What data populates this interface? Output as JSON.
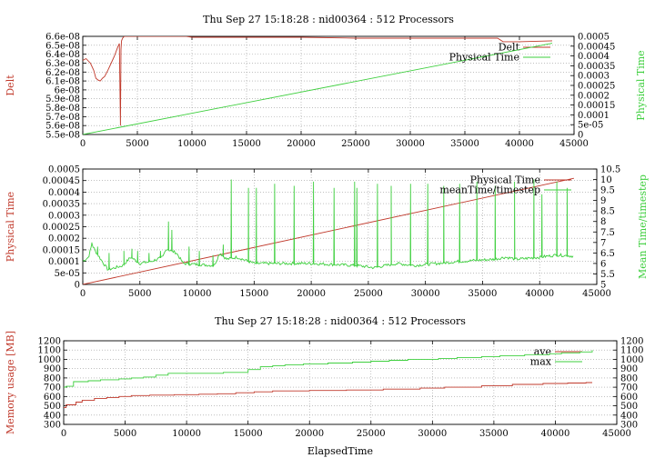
{
  "chart_data": [
    {
      "type": "line",
      "title": "Thu Sep 27 15:18:28 : nid00364 : 512 Processors",
      "xlabel": "",
      "ylabel": "Delt",
      "y2label": "Physical Time",
      "xlim": [
        0,
        45000
      ],
      "ylim": [
        5.5e-08,
        6.6e-08
      ],
      "y2lim": [
        0,
        0.0005
      ],
      "xticks": [
        "0",
        "5000",
        "10000",
        "15000",
        "20000",
        "25000",
        "30000",
        "35000",
        "40000",
        "45000"
      ],
      "yticks": [
        "5.5e-08",
        "5.6e-08",
        "5.7e-08",
        "5.8e-08",
        "5.9e-08",
        "6e-08",
        "6.1e-08",
        "6.2e-08",
        "6.3e-08",
        "6.4e-08",
        "6.5e-08",
        "6.6e-08"
      ],
      "y2ticks": [
        "0",
        "5e-05",
        "0.0001",
        "0.00015",
        "0.0002",
        "0.00025",
        "0.0003",
        "0.00035",
        "0.0004",
        "0.00045",
        "0.0005"
      ],
      "grid": true,
      "legend": "top-right",
      "series": [
        {
          "name": "Delt",
          "axis": "y",
          "color": "#c0392b",
          "x": [
            0,
            300,
            700,
            1000,
            1200,
            1400,
            1600,
            1800,
            2000,
            2300,
            2600,
            2900,
            3200,
            3350,
            3450,
            3500,
            3550,
            3650,
            3800,
            4000,
            5000,
            8000,
            9500,
            10000,
            12000,
            15000,
            20000,
            25000,
            30000,
            35000,
            38000,
            38500,
            40000,
            43000
          ],
          "y": [
            6.33e-08,
            6.35e-08,
            6.3e-08,
            6.22e-08,
            6.13e-08,
            6.11e-08,
            6.1e-08,
            6.13e-08,
            6.15e-08,
            6.22e-08,
            6.3e-08,
            6.38e-08,
            6.48e-08,
            6.52e-08,
            5.6e-08,
            6.45e-08,
            6.55e-08,
            6.58e-08,
            6.6e-08,
            6.6e-08,
            6.6e-08,
            6.6e-08,
            6.6e-08,
            6.59e-08,
            6.59e-08,
            6.59e-08,
            6.59e-08,
            6.58e-08,
            6.58e-08,
            6.58e-08,
            6.58e-08,
            6.54e-08,
            6.54e-08,
            6.55e-08
          ]
        },
        {
          "name": "Physical Time",
          "axis": "y2",
          "color": "#3ecf3e",
          "x": [
            0,
            43000
          ],
          "y": [
            0,
            0.000465
          ]
        }
      ]
    },
    {
      "type": "line",
      "title": "",
      "xlabel": "",
      "ylabel": "Physical Time",
      "y2label": "Mean Time/timestep",
      "xlim": [
        0,
        45000
      ],
      "ylim": [
        0,
        0.0005
      ],
      "y2lim": [
        5,
        10.5
      ],
      "xticks": [
        "0",
        "5000",
        "10000",
        "15000",
        "20000",
        "25000",
        "30000",
        "35000",
        "40000",
        "45000"
      ],
      "yticks": [
        "0",
        "5e-05",
        "0.0001",
        "0.00015",
        "0.0002",
        "0.00025",
        "0.0003",
        "0.00035",
        "0.0004",
        "0.00045",
        "0.0005"
      ],
      "y2ticks": [
        "5",
        "5.5",
        "6",
        "6.5",
        "7",
        "7.5",
        "8",
        "8.5",
        "9",
        "9.5",
        "10",
        "10.5"
      ],
      "grid": true,
      "legend": "top-right",
      "series": [
        {
          "name": "Physical Time",
          "axis": "y",
          "color": "#c0392b",
          "x": [
            0,
            43000
          ],
          "y": [
            0,
            0.00046
          ]
        },
        {
          "name": "meanTime/timestep",
          "axis": "y2",
          "color": "#3ecf3e",
          "baseline": [
            [
              0,
              6.1
            ],
            [
              500,
              6.3
            ],
            [
              800,
              6.9
            ],
            [
              1200,
              6.5
            ],
            [
              1700,
              6.1
            ],
            [
              2200,
              5.7
            ],
            [
              3500,
              5.9
            ],
            [
              4200,
              6.3
            ],
            [
              5000,
              6.0
            ],
            [
              6000,
              6.1
            ],
            [
              7000,
              6.3
            ],
            [
              7300,
              6.7
            ],
            [
              8200,
              6.5
            ],
            [
              8800,
              6.0
            ],
            [
              11500,
              5.9
            ],
            [
              12000,
              6.5
            ],
            [
              12600,
              6.2
            ],
            [
              13500,
              6.3
            ],
            [
              15000,
              6.0
            ],
            [
              20000,
              6.0
            ],
            [
              24000,
              5.9
            ],
            [
              25500,
              5.8
            ],
            [
              27500,
              6.0
            ],
            [
              29000,
              5.9
            ],
            [
              31000,
              6.0
            ],
            [
              33000,
              6.1
            ],
            [
              36000,
              6.2
            ],
            [
              37000,
              6.3
            ],
            [
              38000,
              6.2
            ],
            [
              40000,
              6.3
            ],
            [
              41500,
              6.4
            ],
            [
              43000,
              6.35
            ]
          ],
          "spikes": [
            [
              800,
              7.0
            ],
            [
              1300,
              6.8
            ],
            [
              2300,
              6.5
            ],
            [
              3600,
              6.6
            ],
            [
              4300,
              6.7
            ],
            [
              4800,
              6.6
            ],
            [
              5800,
              6.5
            ],
            [
              6800,
              6.6
            ],
            [
              7500,
              8.0
            ],
            [
              7800,
              7.6
            ],
            [
              9300,
              6.8
            ],
            [
              10200,
              6.6
            ],
            [
              11400,
              6.4
            ],
            [
              12300,
              6.9
            ],
            [
              13000,
              10.0
            ],
            [
              14500,
              9.6
            ],
            [
              15200,
              9.6
            ],
            [
              16800,
              9.8
            ],
            [
              18500,
              9.7
            ],
            [
              20200,
              9.9
            ],
            [
              22000,
              9.6
            ],
            [
              23800,
              9.9
            ],
            [
              24000,
              9.6
            ],
            [
              25800,
              9.8
            ],
            [
              27000,
              9.7
            ],
            [
              28700,
              9.8
            ],
            [
              30200,
              9.8
            ],
            [
              31600,
              9.7
            ],
            [
              33000,
              9.8
            ],
            [
              34500,
              9.9
            ],
            [
              36100,
              9.7
            ],
            [
              37800,
              9.9
            ],
            [
              39500,
              10.0
            ],
            [
              40200,
              9.3
            ],
            [
              41500,
              9.9
            ],
            [
              42400,
              9.6
            ]
          ]
        }
      ]
    },
    {
      "type": "line",
      "title": "Thu Sep 27 15:18:28 : nid00364 : 512 Processors",
      "xlabel": "ElapsedTime",
      "ylabel": "Memory usage [MB]",
      "y2label": "",
      "xlim": [
        0,
        45000
      ],
      "ylim": [
        300,
        1200
      ],
      "y2lim": [
        300,
        1200
      ],
      "xticks": [
        "0",
        "5000",
        "10000",
        "15000",
        "20000",
        "25000",
        "30000",
        "35000",
        "40000",
        "45000"
      ],
      "yticks": [
        "300",
        "400",
        "500",
        "600",
        "700",
        "800",
        "900",
        "1000",
        "1100",
        "1200"
      ],
      "y2ticks": [
        "300",
        "400",
        "500",
        "600",
        "700",
        "800",
        "900",
        "1000",
        "1100",
        "1200"
      ],
      "grid": true,
      "legend": "top-right",
      "series": [
        {
          "name": "ave",
          "axis": "y",
          "color": "#c0392b",
          "step": true,
          "x": [
            0,
            200,
            1000,
            1500,
            2500,
            3500,
            4500,
            5500,
            7000,
            9000,
            11000,
            12500,
            14000,
            15500,
            17000,
            20000,
            23000,
            26000,
            29000,
            31000,
            34000,
            36500,
            39000,
            41000,
            42500,
            43000
          ],
          "y": [
            480,
            510,
            540,
            560,
            580,
            590,
            600,
            610,
            615,
            620,
            625,
            630,
            640,
            650,
            660,
            665,
            670,
            680,
            690,
            700,
            715,
            730,
            740,
            745,
            750,
            750
          ]
        },
        {
          "name": "max",
          "axis": "y",
          "color": "#3ecf3e",
          "step": true,
          "x": [
            0,
            200,
            800,
            2000,
            3000,
            4500,
            5500,
            6500,
            7500,
            8500,
            13000,
            15000,
            16000,
            17000,
            18000,
            19500,
            21500,
            23500,
            25000,
            26500,
            28000,
            30500,
            32000,
            34000,
            35500,
            37500,
            39500,
            40500,
            42000,
            43000
          ],
          "y": [
            700,
            710,
            760,
            770,
            780,
            790,
            800,
            810,
            830,
            850,
            860,
            890,
            920,
            930,
            940,
            950,
            960,
            970,
            980,
            990,
            1000,
            1010,
            1020,
            1030,
            1040,
            1050,
            1060,
            1070,
            1080,
            1100
          ]
        }
      ]
    }
  ]
}
